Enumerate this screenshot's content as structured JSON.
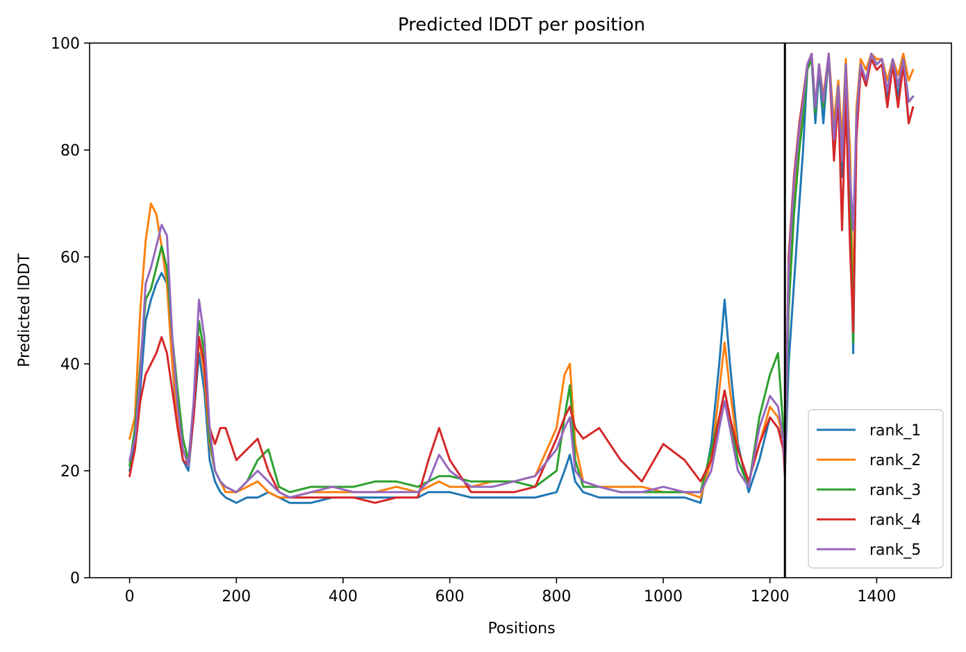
{
  "chart_data": {
    "type": "line",
    "title": "Predicted lDDT per position",
    "xlabel": "Positions",
    "ylabel": "Predicted lDDT",
    "xlim": [
      -75,
      1540
    ],
    "ylim": [
      0,
      100
    ],
    "xticks": [
      0,
      200,
      400,
      600,
      800,
      1000,
      1200,
      1400
    ],
    "yticks": [
      0,
      20,
      40,
      60,
      80,
      100
    ],
    "grid": false,
    "legend_position": "lower-right",
    "vertical_line_x": 1228,
    "colors": {
      "rank_1": "#1f77b4",
      "rank_2": "#ff7f0e",
      "rank_3": "#2ca02c",
      "rank_4": "#d62728",
      "rank_5": "#9467bd"
    },
    "series": [
      {
        "name": "rank_1",
        "x": [
          0,
          10,
          20,
          30,
          40,
          50,
          60,
          70,
          80,
          90,
          100,
          110,
          120,
          130,
          140,
          150,
          160,
          170,
          180,
          200,
          220,
          240,
          260,
          280,
          300,
          340,
          380,
          420,
          460,
          500,
          540,
          560,
          580,
          600,
          640,
          680,
          720,
          760,
          800,
          815,
          825,
          835,
          850,
          880,
          920,
          960,
          1000,
          1040,
          1070,
          1090,
          1105,
          1115,
          1125,
          1140,
          1160,
          1180,
          1200,
          1215,
          1225,
          1228,
          1235,
          1245,
          1255,
          1262,
          1270,
          1278,
          1285,
          1292,
          1300,
          1310,
          1320,
          1328,
          1335,
          1342,
          1350,
          1356,
          1362,
          1370,
          1380,
          1390,
          1400,
          1410,
          1420,
          1430,
          1440,
          1450,
          1460,
          1468
        ],
        "y": [
          20,
          25,
          35,
          48,
          52,
          55,
          57,
          55,
          40,
          28,
          22,
          20,
          30,
          42,
          35,
          22,
          18,
          16,
          15,
          14,
          15,
          15,
          16,
          15,
          14,
          14,
          15,
          15,
          15,
          15,
          15,
          16,
          16,
          16,
          15,
          15,
          15,
          15,
          16,
          20,
          23,
          18,
          16,
          15,
          15,
          15,
          15,
          15,
          14,
          25,
          40,
          52,
          40,
          25,
          16,
          22,
          30,
          28,
          26,
          20,
          40,
          55,
          70,
          80,
          95,
          97,
          85,
          95,
          85,
          98,
          80,
          90,
          75,
          95,
          75,
          42,
          85,
          95,
          92,
          97,
          95,
          96,
          90,
          96,
          90,
          97,
          85,
          88
        ]
      },
      {
        "name": "rank_2",
        "x": [
          0,
          10,
          20,
          30,
          40,
          50,
          60,
          70,
          80,
          90,
          100,
          110,
          120,
          130,
          140,
          150,
          160,
          170,
          180,
          200,
          220,
          240,
          260,
          280,
          300,
          340,
          380,
          420,
          460,
          500,
          540,
          560,
          580,
          600,
          640,
          680,
          720,
          760,
          800,
          815,
          825,
          835,
          850,
          880,
          920,
          960,
          1000,
          1040,
          1070,
          1090,
          1105,
          1115,
          1125,
          1140,
          1160,
          1180,
          1200,
          1215,
          1225,
          1228,
          1235,
          1245,
          1255,
          1262,
          1270,
          1278,
          1285,
          1292,
          1300,
          1310,
          1320,
          1328,
          1335,
          1342,
          1350,
          1356,
          1362,
          1370,
          1380,
          1390,
          1400,
          1410,
          1420,
          1430,
          1440,
          1450,
          1460,
          1468
        ],
        "y": [
          26,
          30,
          50,
          63,
          70,
          68,
          62,
          55,
          40,
          30,
          24,
          21,
          32,
          45,
          38,
          25,
          20,
          18,
          16,
          16,
          17,
          18,
          16,
          15,
          15,
          16,
          16,
          16,
          16,
          17,
          16,
          17,
          18,
          17,
          17,
          18,
          18,
          19,
          28,
          38,
          40,
          25,
          18,
          17,
          17,
          17,
          16,
          16,
          15,
          22,
          35,
          44,
          35,
          24,
          18,
          25,
          32,
          30,
          26,
          20,
          55,
          72,
          82,
          88,
          96,
          98,
          88,
          96,
          90,
          98,
          85,
          93,
          82,
          97,
          80,
          50,
          88,
          97,
          95,
          98,
          97,
          97,
          93,
          97,
          94,
          98,
          93,
          95
        ]
      },
      {
        "name": "rank_3",
        "x": [
          0,
          10,
          20,
          30,
          40,
          50,
          60,
          70,
          80,
          90,
          100,
          110,
          120,
          130,
          140,
          150,
          160,
          170,
          180,
          200,
          220,
          240,
          260,
          280,
          300,
          340,
          380,
          420,
          460,
          500,
          540,
          560,
          580,
          600,
          640,
          680,
          720,
          760,
          800,
          815,
          825,
          835,
          850,
          880,
          920,
          960,
          1000,
          1040,
          1070,
          1090,
          1105,
          1115,
          1125,
          1140,
          1160,
          1180,
          1200,
          1215,
          1225,
          1228,
          1235,
          1245,
          1255,
          1262,
          1270,
          1278,
          1285,
          1292,
          1300,
          1310,
          1320,
          1328,
          1335,
          1342,
          1350,
          1356,
          1362,
          1370,
          1380,
          1390,
          1400,
          1410,
          1420,
          1430,
          1440,
          1450,
          1460,
          1468
        ],
        "y": [
          21,
          28,
          40,
          52,
          54,
          58,
          62,
          58,
          45,
          35,
          26,
          22,
          32,
          48,
          42,
          26,
          20,
          18,
          17,
          16,
          18,
          22,
          24,
          17,
          16,
          17,
          17,
          17,
          18,
          18,
          17,
          18,
          19,
          19,
          18,
          18,
          18,
          17,
          20,
          30,
          36,
          22,
          17,
          17,
          16,
          16,
          16,
          16,
          16,
          24,
          30,
          35,
          30,
          22,
          17,
          30,
          38,
          42,
          28,
          20,
          50,
          68,
          80,
          86,
          95,
          97,
          87,
          96,
          88,
          98,
          82,
          92,
          78,
          96,
          72,
          44,
          86,
          96,
          93,
          98,
          96,
          97,
          91,
          97,
          92,
          97,
          89,
          90
        ]
      },
      {
        "name": "rank_4",
        "x": [
          0,
          10,
          20,
          30,
          40,
          50,
          60,
          70,
          80,
          90,
          100,
          110,
          120,
          130,
          140,
          150,
          160,
          170,
          180,
          200,
          220,
          240,
          260,
          280,
          300,
          340,
          380,
          420,
          460,
          500,
          540,
          560,
          580,
          600,
          640,
          680,
          720,
          760,
          800,
          815,
          825,
          835,
          850,
          880,
          920,
          960,
          1000,
          1040,
          1070,
          1090,
          1105,
          1115,
          1125,
          1140,
          1160,
          1180,
          1200,
          1215,
          1225,
          1228,
          1235,
          1245,
          1255,
          1262,
          1270,
          1278,
          1285,
          1292,
          1300,
          1310,
          1320,
          1328,
          1335,
          1342,
          1350,
          1356,
          1362,
          1370,
          1380,
          1390,
          1400,
          1410,
          1420,
          1430,
          1440,
          1450,
          1460,
          1468
        ],
        "y": [
          19,
          24,
          33,
          38,
          40,
          42,
          45,
          42,
          35,
          28,
          22,
          21,
          30,
          45,
          40,
          28,
          25,
          28,
          28,
          22,
          24,
          26,
          20,
          16,
          15,
          15,
          15,
          15,
          14,
          15,
          15,
          22,
          28,
          22,
          16,
          16,
          16,
          17,
          26,
          30,
          32,
          28,
          26,
          28,
          22,
          18,
          25,
          22,
          18,
          22,
          30,
          35,
          30,
          24,
          18,
          25,
          30,
          28,
          24,
          19,
          60,
          75,
          85,
          90,
          96,
          98,
          88,
          96,
          89,
          98,
          78,
          90,
          65,
          90,
          62,
          46,
          82,
          95,
          92,
          97,
          95,
          96,
          88,
          96,
          88,
          96,
          85,
          88
        ]
      },
      {
        "name": "rank_5",
        "x": [
          0,
          10,
          20,
          30,
          40,
          50,
          60,
          70,
          80,
          90,
          100,
          110,
          120,
          130,
          140,
          150,
          160,
          170,
          180,
          200,
          220,
          240,
          260,
          280,
          300,
          340,
          380,
          420,
          460,
          500,
          540,
          560,
          580,
          600,
          640,
          680,
          720,
          760,
          800,
          815,
          825,
          835,
          850,
          880,
          920,
          960,
          1000,
          1040,
          1070,
          1090,
          1105,
          1115,
          1125,
          1140,
          1160,
          1180,
          1200,
          1215,
          1225,
          1228,
          1235,
          1245,
          1255,
          1262,
          1270,
          1278,
          1285,
          1292,
          1300,
          1310,
          1320,
          1328,
          1335,
          1342,
          1350,
          1356,
          1362,
          1370,
          1380,
          1390,
          1400,
          1410,
          1420,
          1430,
          1440,
          1450,
          1460,
          1468
        ],
        "y": [
          22,
          26,
          38,
          55,
          58,
          62,
          66,
          64,
          45,
          32,
          24,
          21,
          33,
          52,
          45,
          28,
          20,
          18,
          17,
          16,
          18,
          20,
          18,
          16,
          15,
          16,
          17,
          16,
          16,
          16,
          16,
          18,
          23,
          20,
          17,
          17,
          18,
          19,
          24,
          28,
          30,
          20,
          18,
          17,
          16,
          16,
          17,
          16,
          16,
          20,
          28,
          33,
          28,
          20,
          17,
          28,
          34,
          32,
          26,
          20,
          58,
          74,
          84,
          89,
          96,
          98,
          88,
          96,
          89,
          98,
          82,
          92,
          78,
          96,
          75,
          65,
          86,
          96,
          93,
          98,
          96,
          97,
          91,
          97,
          92,
          97,
          89,
          90
        ]
      }
    ]
  }
}
